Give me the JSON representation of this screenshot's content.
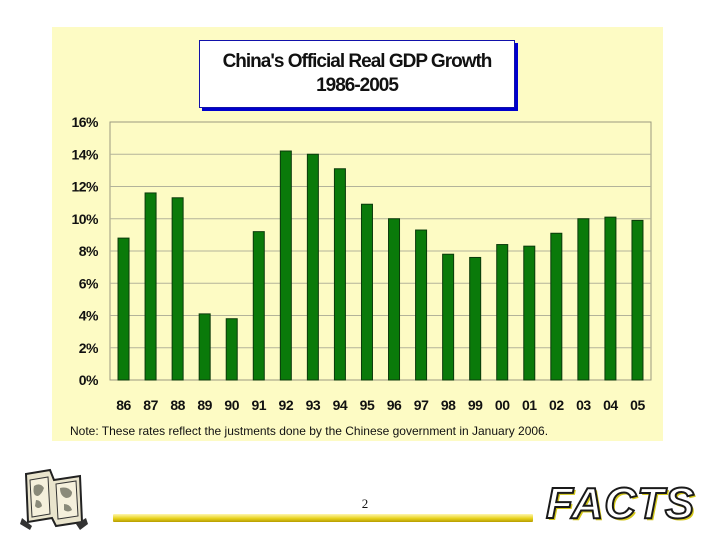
{
  "chart_data": {
    "type": "bar",
    "title": "China's Official Real GDP Growth",
    "subtitle": "1986-2005",
    "categories": [
      "86",
      "87",
      "88",
      "89",
      "90",
      "91",
      "92",
      "93",
      "94",
      "95",
      "96",
      "97",
      "98",
      "99",
      "00",
      "01",
      "02",
      "03",
      "04",
      "05"
    ],
    "values": [
      8.8,
      11.6,
      11.3,
      4.1,
      3.8,
      9.2,
      14.2,
      14.0,
      13.1,
      10.9,
      10.0,
      9.3,
      7.8,
      7.6,
      8.4,
      8.3,
      9.1,
      10.0,
      10.1,
      9.9
    ],
    "yticks": [
      "0%",
      "2%",
      "4%",
      "6%",
      "8%",
      "10%",
      "12%",
      "14%",
      "16%"
    ],
    "ylim": [
      0,
      16
    ],
    "xlabel": "",
    "ylabel": "",
    "grid": true,
    "note": "Note: These rates reflect the justments done by the Chinese government in January 2006.",
    "bar_color": "#0a7a0a",
    "panel_color": "#fdfbc4"
  },
  "footer": {
    "page_number": "2",
    "logo_text": "FACTS"
  }
}
